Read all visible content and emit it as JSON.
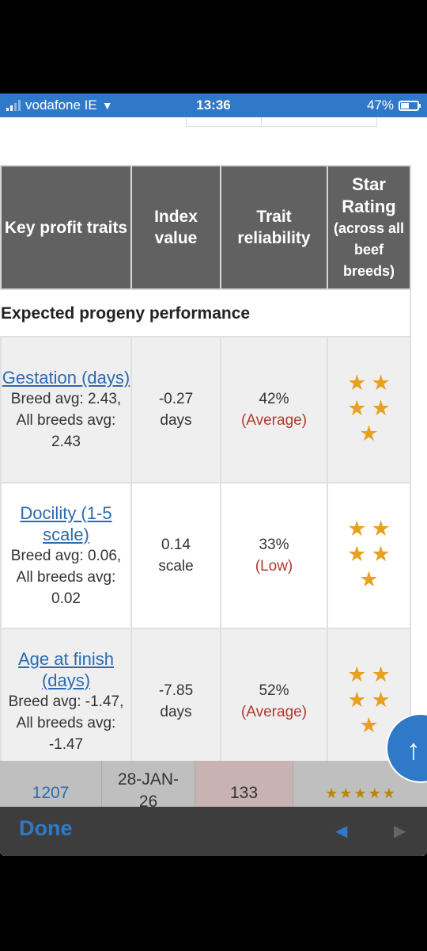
{
  "status_bar": {
    "carrier": "vodafone IE",
    "time": "13:36",
    "battery": "47%",
    "battery_level": 0.47
  },
  "table": {
    "headers": {
      "key_profit_traits": "Key profit traits",
      "index_value": "Index value",
      "trait_reliability": "Trait reliability",
      "star_rating": "Star Rating",
      "star_rating_sub": "(across all beef breeds)"
    },
    "section_title": "Expected progeny performance",
    "rows": [
      {
        "trait": "Gestation (days)",
        "note": "Breed avg: 2.43, All breeds avg: 2.43",
        "value": "-0.27",
        "unit": "days",
        "reliability": "42%",
        "reliability_label": "(Average)",
        "stars": 5
      },
      {
        "trait": "Docility (1-5 scale)",
        "note": "Breed avg: 0.06, All breeds avg: 0.02",
        "value": "0.14",
        "unit": "scale",
        "reliability": "33%",
        "reliability_label": "(Low)",
        "stars": 5
      },
      {
        "trait": "Age at finish (days)",
        "note": "Breed avg: -1.47, All breeds avg: -1.47",
        "value": "-7.85",
        "unit": "days",
        "reliability": "52%",
        "reliability_label": "(Average)",
        "stars": 5
      }
    ]
  },
  "overlay_row": {
    "id": "1207",
    "date": "28-JAN-",
    "date_cont": "26",
    "count": "133",
    "stars": 5
  },
  "scroll_top_icon": "arrow-up-icon",
  "toolbar": {
    "done_label": "Done",
    "back_icon": "back-arrow-icon",
    "forward_icon": "forward-arrow-icon"
  },
  "colors": {
    "accent": "#2f79c8",
    "header_bg": "#616161",
    "star": "#e8a020",
    "link": "#2a6bb0",
    "reliability": "#b03a2e"
  }
}
